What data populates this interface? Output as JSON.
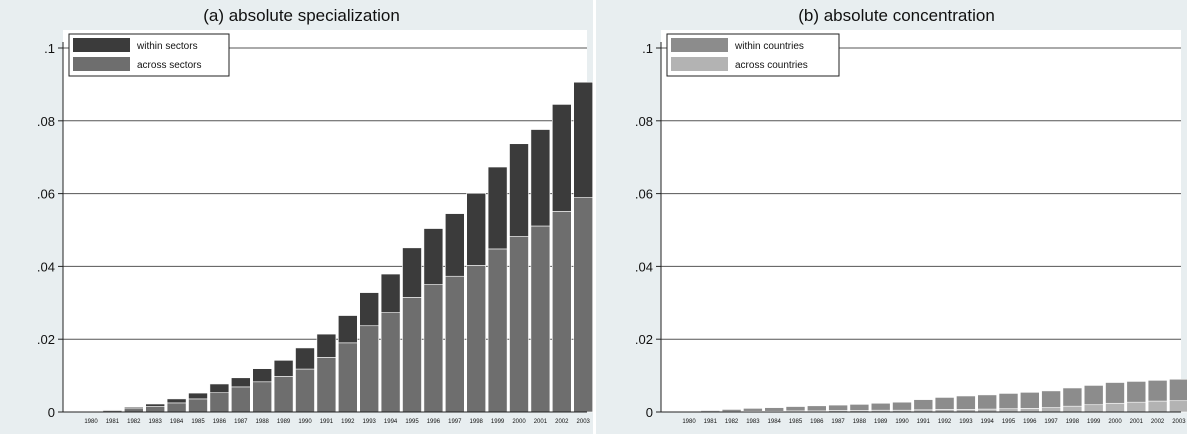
{
  "chart_data": [
    {
      "type": "bar",
      "stacked": true,
      "title": "(a) absolute specialization",
      "xlabel": "",
      "ylabel": "",
      "ylim": [
        0,
        0.1
      ],
      "yticks": [
        0,
        0.02,
        0.04,
        0.06,
        0.08,
        0.1
      ],
      "ytick_labels": [
        "0",
        ".02",
        ".04",
        ".06",
        ".08",
        ".1"
      ],
      "grid": true,
      "legend_position": "top-left",
      "categories": [
        "1980",
        "1981",
        "1982",
        "1983",
        "1984",
        "1985",
        "1986",
        "1987",
        "1988",
        "1989",
        "1990",
        "1991",
        "1992",
        "1993",
        "1994",
        "1995",
        "1996",
        "1997",
        "1998",
        "1999",
        "2000",
        "2001",
        "2002",
        "2003"
      ],
      "series": [
        {
          "name": "across sectors",
          "color": "#6e6e6e",
          "values": [
            0.0001,
            0.0004,
            0.0009,
            0.0015,
            0.0025,
            0.0036,
            0.0053,
            0.0069,
            0.0083,
            0.0098,
            0.0118,
            0.015,
            0.019,
            0.0237,
            0.0273,
            0.0315,
            0.035,
            0.0373,
            0.0403,
            0.0448,
            0.0482,
            0.0511,
            0.0551,
            0.0589
          ]
        },
        {
          "name": "within sectors",
          "color": "#3b3b3b",
          "values": [
            0.0001,
            0.0002,
            0.0004,
            0.0007,
            0.0011,
            0.0016,
            0.0024,
            0.0025,
            0.0036,
            0.0044,
            0.0058,
            0.0064,
            0.0075,
            0.0091,
            0.0106,
            0.0136,
            0.0154,
            0.0172,
            0.0198,
            0.0225,
            0.0255,
            0.0265,
            0.0294,
            0.0317
          ]
        }
      ]
    },
    {
      "type": "bar",
      "stacked": true,
      "title": "(b) absolute concentration",
      "xlabel": "",
      "ylabel": "",
      "ylim": [
        0,
        0.1
      ],
      "yticks": [
        0,
        0.02,
        0.04,
        0.06,
        0.08,
        0.1
      ],
      "ytick_labels": [
        "0",
        ".02",
        ".04",
        ".06",
        ".08",
        ".1"
      ],
      "grid": true,
      "legend_position": "top-left",
      "categories": [
        "1980",
        "1981",
        "1982",
        "1983",
        "1984",
        "1985",
        "1986",
        "1987",
        "1988",
        "1989",
        "1990",
        "1991",
        "1992",
        "1993",
        "1994",
        "1995",
        "1996",
        "1997",
        "1998",
        "1999",
        "2000",
        "2001",
        "2002",
        "2003"
      ],
      "series": [
        {
          "name": "across countries",
          "color": "#b3b3b3",
          "values": [
            0.0,
            0.0001,
            0.0001,
            0.0002,
            0.0002,
            0.0003,
            0.0003,
            0.0004,
            0.0004,
            0.0005,
            0.0005,
            0.0006,
            0.0007,
            0.0007,
            0.0008,
            0.0009,
            0.001,
            0.0012,
            0.0016,
            0.002,
            0.0024,
            0.0027,
            0.003,
            0.0031
          ]
        },
        {
          "name": "within countries",
          "color": "#8c8c8c",
          "values": [
            0.0001,
            0.0003,
            0.0006,
            0.0008,
            0.001,
            0.0012,
            0.0014,
            0.0015,
            0.0017,
            0.0019,
            0.0022,
            0.0028,
            0.0033,
            0.0037,
            0.0039,
            0.0042,
            0.0044,
            0.0046,
            0.005,
            0.0053,
            0.0057,
            0.0057,
            0.0057,
            0.0059
          ]
        }
      ]
    }
  ]
}
